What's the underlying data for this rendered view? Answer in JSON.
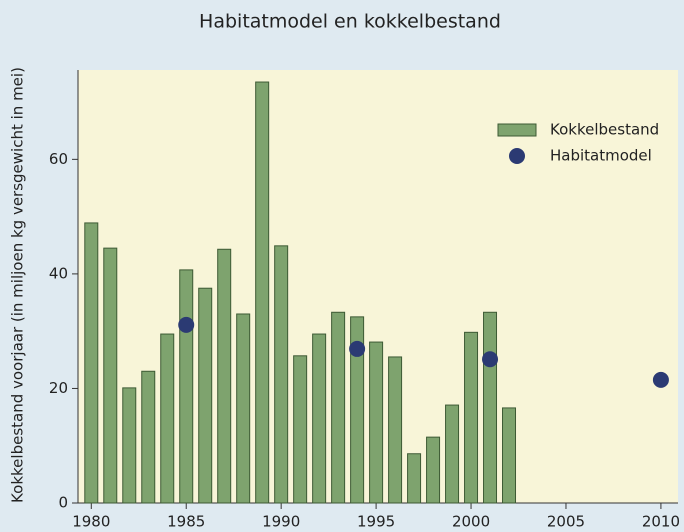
{
  "chart_data": {
    "type": "bar_scatter",
    "title": "Habitatmodel en kokkelbestand",
    "ylabel": "Kokkelbestand voorjaar (in miljoen kg versgewicht in mei)",
    "xlim": [
      1979.3,
      2010.9
    ],
    "xticks": [
      1980,
      1985,
      1990,
      1995,
      2000,
      2005,
      2010
    ],
    "ylim": [
      0,
      75.6
    ],
    "yticks": [
      0,
      20,
      40,
      60
    ],
    "legend": "top right",
    "series": [
      {
        "name": "Kokkelbestand",
        "type": "bar",
        "color": "#7ea36e",
        "x": [
          1980,
          1981,
          1982,
          1983,
          1984,
          1985,
          1986,
          1987,
          1988,
          1989,
          1990,
          1991,
          1992,
          1993,
          1994,
          1995,
          1996,
          1997,
          1998,
          1999,
          2000,
          2001,
          2002
        ],
        "values": [
          48.9,
          44.5,
          20.1,
          23,
          29.5,
          40.7,
          37.5,
          44.3,
          33,
          73.5,
          44.9,
          25.7,
          29.5,
          33.3,
          32.5,
          28.1,
          25.5,
          8.6,
          11.5,
          17.1,
          29.8,
          33.3,
          16.6
        ]
      },
      {
        "name": "Habitatmodel",
        "type": "scatter",
        "color": "#2b3a73",
        "x": [
          1985,
          1994,
          2001,
          2010
        ],
        "values": [
          31.1,
          26.9,
          25.1,
          21.5
        ]
      }
    ]
  }
}
